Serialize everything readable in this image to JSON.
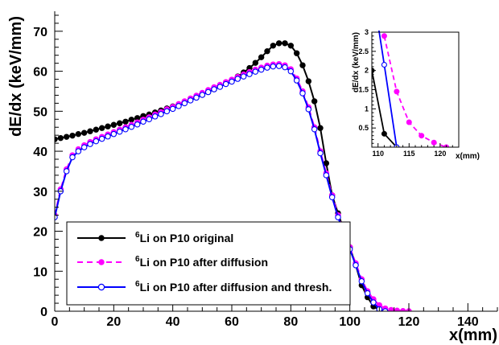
{
  "chart_data": [
    {
      "type": "line",
      "xlabel": "x(mm)",
      "ylabel": "dE/dx (keV/mm)",
      "xlim": [
        0,
        150
      ],
      "ylim": [
        0,
        75
      ],
      "xticks": [
        0,
        20,
        40,
        60,
        80,
        100,
        120,
        140
      ],
      "yticks": [
        0,
        10,
        20,
        30,
        40,
        50,
        60,
        70
      ],
      "grid": false,
      "legend_position": "bottom-left",
      "series": [
        {
          "name": "Li on P10 original",
          "name_superscript": "6",
          "color": "#000000",
          "line_style": "solid",
          "marker": "filled-circle",
          "x": [
            0,
            2,
            4,
            6,
            8,
            10,
            12,
            14,
            16,
            18,
            20,
            22,
            24,
            26,
            28,
            30,
            32,
            34,
            36,
            38,
            40,
            42,
            44,
            46,
            48,
            50,
            52,
            54,
            56,
            58,
            60,
            62,
            64,
            66,
            68,
            70,
            72,
            74,
            76,
            78,
            80,
            82,
            84,
            86,
            88,
            90,
            92,
            94,
            96,
            98,
            100,
            102,
            104,
            106,
            108,
            110,
            112,
            114
          ],
          "y": [
            43.0,
            43.3,
            43.6,
            43.9,
            44.3,
            44.6,
            45.0,
            45.4,
            45.8,
            46.2,
            46.6,
            47.0,
            47.4,
            47.9,
            48.3,
            48.8,
            49.2,
            49.7,
            50.2,
            50.7,
            51.2,
            51.7,
            52.3,
            52.9,
            53.5,
            54.1,
            54.8,
            55.5,
            56.2,
            57.0,
            57.8,
            58.7,
            59.7,
            60.8,
            62.1,
            63.5,
            65.0,
            66.4,
            67.0,
            67.0,
            66.4,
            64.5,
            61.5,
            57.5,
            52.5,
            45.8,
            37.0,
            29.0,
            24.5,
            20.2,
            16.0,
            11.5,
            6.5,
            3.5,
            1.2,
            0.3,
            0.0,
            0.0
          ]
        },
        {
          "name": "Li on P10 after diffusion",
          "name_superscript": "6",
          "color": "#ff00ff",
          "line_style": "dashed",
          "marker": "filled-circle",
          "x": [
            0,
            2,
            4,
            6,
            8,
            10,
            12,
            14,
            16,
            18,
            20,
            22,
            24,
            26,
            28,
            30,
            32,
            34,
            36,
            38,
            40,
            42,
            44,
            46,
            48,
            50,
            52,
            54,
            56,
            58,
            60,
            62,
            64,
            66,
            68,
            70,
            72,
            74,
            76,
            78,
            80,
            82,
            84,
            86,
            88,
            90,
            92,
            94,
            96,
            98,
            100,
            102,
            104,
            106,
            108,
            110,
            112,
            114,
            116,
            118,
            120
          ],
          "y": [
            24.0,
            30.5,
            35.5,
            39.0,
            40.5,
            41.5,
            42.3,
            43.0,
            43.6,
            44.2,
            44.8,
            45.4,
            46.0,
            46.6,
            47.2,
            47.9,
            48.5,
            49.2,
            49.8,
            50.5,
            51.1,
            51.8,
            52.5,
            53.2,
            53.9,
            54.6,
            55.3,
            56.0,
            56.6,
            57.3,
            57.9,
            58.6,
            59.2,
            59.8,
            60.4,
            60.9,
            61.4,
            61.7,
            61.8,
            61.5,
            60.5,
            58.2,
            55.0,
            51.0,
            46.0,
            40.0,
            34.5,
            29.0,
            24.0,
            20.0,
            16.0,
            12.0,
            8.0,
            5.0,
            3.0,
            1.5,
            0.7,
            0.3,
            0.15,
            0.05,
            0.0
          ]
        },
        {
          "name": "Li on P10 after diffusion and thresh.",
          "name_superscript": "6",
          "color": "#0000ff",
          "line_style": "solid",
          "marker": "open-circle",
          "x": [
            0,
            2,
            4,
            6,
            8,
            10,
            12,
            14,
            16,
            18,
            20,
            22,
            24,
            26,
            28,
            30,
            32,
            34,
            36,
            38,
            40,
            42,
            44,
            46,
            48,
            50,
            52,
            54,
            56,
            58,
            60,
            62,
            64,
            66,
            68,
            70,
            72,
            74,
            76,
            78,
            80,
            82,
            84,
            86,
            88,
            90,
            92,
            94,
            96,
            98,
            100,
            102,
            104,
            106,
            108,
            110,
            112
          ],
          "y": [
            23.5,
            30.0,
            35.0,
            38.5,
            40.0,
            41.0,
            41.8,
            42.5,
            43.1,
            43.7,
            44.3,
            44.9,
            45.5,
            46.1,
            46.7,
            47.4,
            48.0,
            48.7,
            49.3,
            50.0,
            50.6,
            51.3,
            52.0,
            52.7,
            53.4,
            54.1,
            54.8,
            55.5,
            56.1,
            56.8,
            57.4,
            58.1,
            58.7,
            59.3,
            59.9,
            60.4,
            60.9,
            61.2,
            61.3,
            61.0,
            60.0,
            57.7,
            54.5,
            50.5,
            45.5,
            39.5,
            34.0,
            28.5,
            23.5,
            19.5,
            15.5,
            11.5,
            7.5,
            4.5,
            2.2,
            0.5,
            0.0
          ]
        }
      ]
    },
    {
      "type": "line",
      "role": "inset",
      "xlabel": "x(mm)",
      "ylabel": "dE/dx (keV/mm)",
      "xlim": [
        109,
        123
      ],
      "ylim": [
        0,
        3
      ],
      "xticks": [
        110,
        115,
        120
      ],
      "yticks": [
        0.5,
        1,
        1.5,
        2,
        2.5,
        3
      ],
      "grid": false,
      "series": [
        {
          "name": "Li on P10 original",
          "color": "#000000",
          "line_style": "solid",
          "marker": "filled-circle",
          "x": [
            109,
            111,
            113
          ],
          "y": [
            2.0,
            0.35,
            0.0
          ]
        },
        {
          "name": "Li on P10 after diffusion",
          "color": "#ff00ff",
          "line_style": "dashed",
          "marker": "filled-circle",
          "x": [
            111,
            113,
            115,
            117,
            119,
            121
          ],
          "y": [
            2.9,
            1.45,
            0.65,
            0.3,
            0.12,
            0.0
          ]
        },
        {
          "name": "Li on P10 after diffusion and thresh.",
          "color": "#0000ff",
          "line_style": "solid",
          "marker": "open-circle",
          "x": [
            110,
            111,
            113
          ],
          "y": [
            3.2,
            2.15,
            0.0
          ]
        }
      ]
    }
  ]
}
